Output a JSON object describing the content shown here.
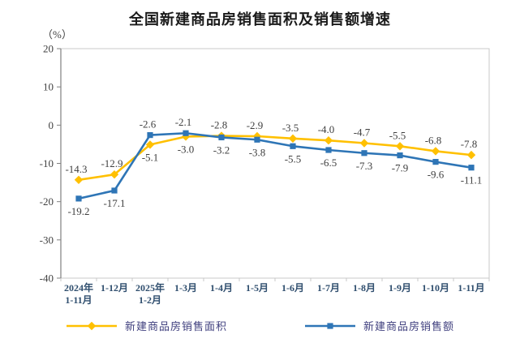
{
  "chart_data": {
    "type": "line",
    "title": "全国新建商品房销售面积及销售额增速",
    "unit_label": "（%）",
    "categories": [
      [
        "2024年",
        "1-11月"
      ],
      [
        "1-12月"
      ],
      [
        "2025年",
        "1-2月"
      ],
      [
        "1-3月"
      ],
      [
        "1-4月"
      ],
      [
        "1-5月"
      ],
      [
        "1-6月"
      ],
      [
        "1-7月"
      ],
      [
        "1-8月"
      ],
      [
        "1-9月"
      ],
      [
        "1-10月"
      ],
      [
        "1-11月"
      ]
    ],
    "series": [
      {
        "name": "新建商品房销售面积",
        "color": "#FFC000",
        "marker": "diamond",
        "values": [
          -14.3,
          -12.9,
          -5.1,
          -3.0,
          -2.8,
          -2.9,
          -3.5,
          -4.0,
          -4.7,
          -5.5,
          -6.8,
          -7.8
        ]
      },
      {
        "name": "新建商品房销售额",
        "color": "#2E75B6",
        "marker": "square",
        "values": [
          -19.2,
          -17.1,
          -2.6,
          -2.1,
          -3.2,
          -3.8,
          -5.5,
          -6.5,
          -7.3,
          -7.9,
          -9.6,
          -11.1
        ]
      }
    ],
    "ylim": [
      -40,
      20
    ],
    "ytick_step": 10,
    "grid": false,
    "legend_position": "bottom"
  },
  "appearance": {
    "axis_line_color": "#808080",
    "plot_border_color": "#c9c9c9",
    "data_label_color": "#404040",
    "x_label_color": "#2f4e6e",
    "y_label_color": "#404040",
    "legend_text_color": "#3f3f7e",
    "title_color": "#1a1a1a"
  }
}
